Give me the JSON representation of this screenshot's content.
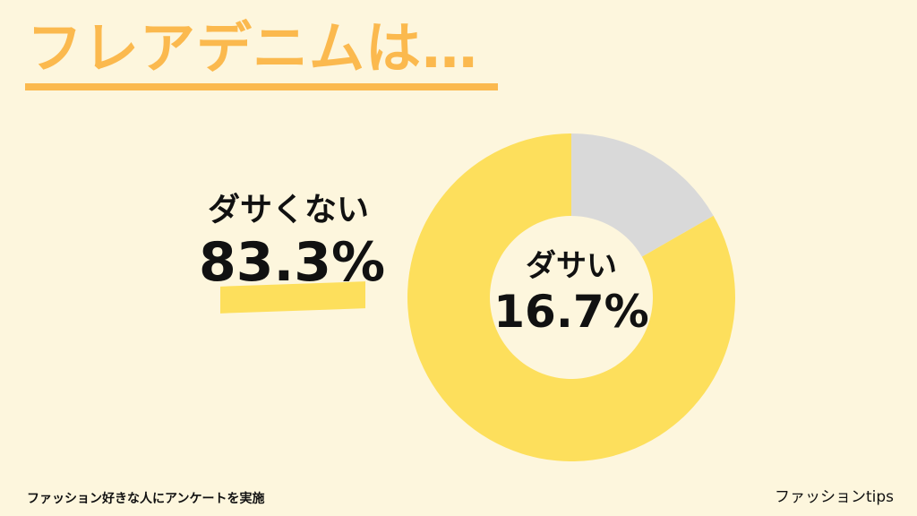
{
  "title": "フレアデニムは…",
  "chart_data": {
    "type": "pie",
    "style": "donut",
    "categories": [
      "ダサい",
      "ダサくない"
    ],
    "values": [
      16.7,
      83.3
    ],
    "unit": "%",
    "colors": [
      "#d9d9d9",
      "#fddf5c"
    ],
    "labels": [
      {
        "name": "ダサい",
        "value": "16.7%"
      },
      {
        "name": "ダサくない",
        "value": "83.3%"
      }
    ]
  },
  "footer": {
    "note": "ファッション好きな人にアンケートを実施",
    "brand": "ファッションtips"
  },
  "colors": {
    "background": "#fdf6dd",
    "accent": "#fbb94e",
    "highlight": "#fddf5c",
    "text": "#111111"
  }
}
